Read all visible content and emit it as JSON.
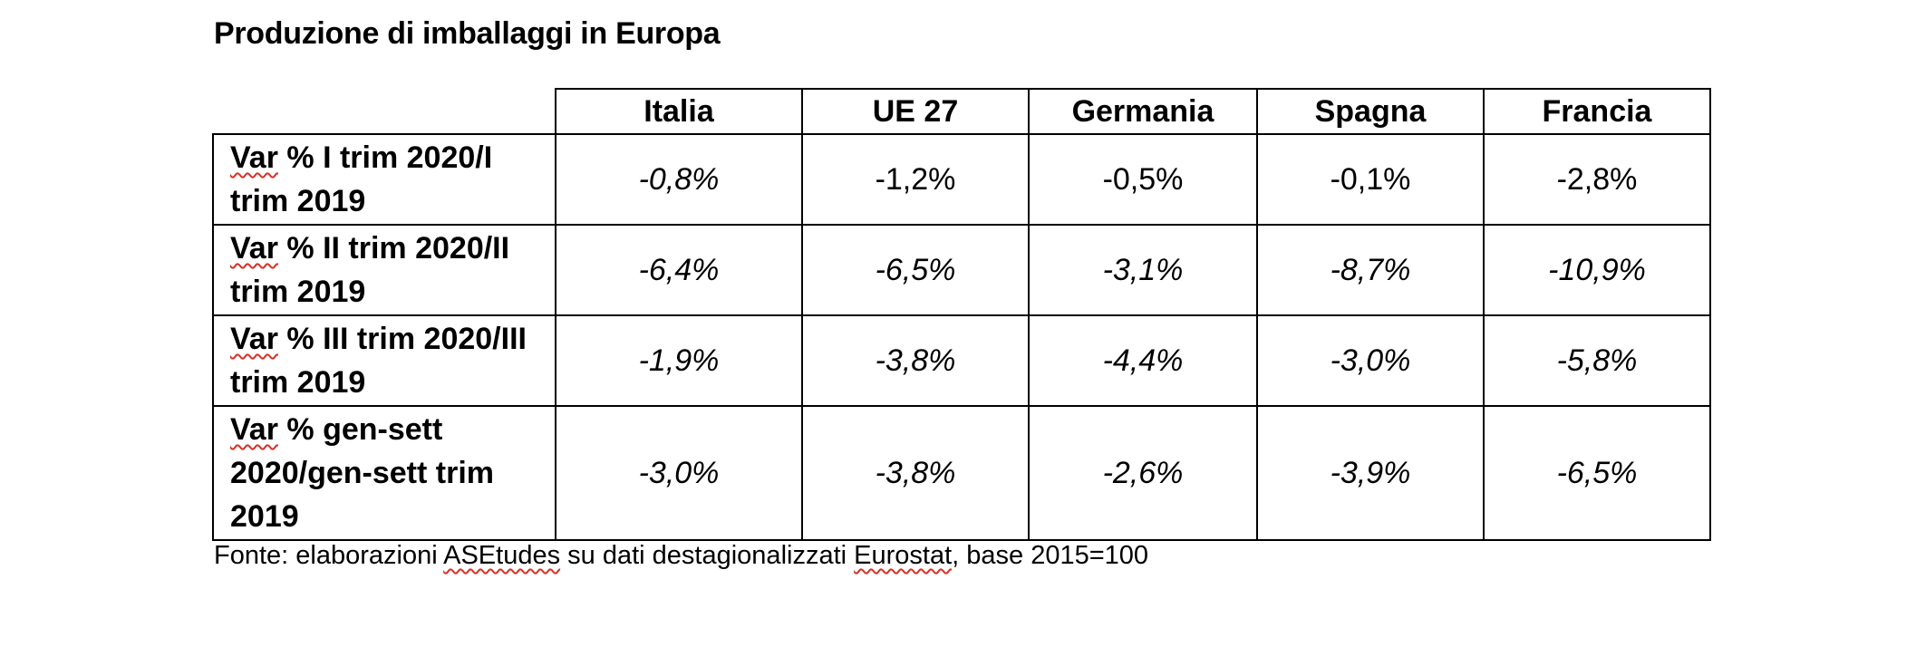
{
  "title": "Produzione di imballaggi in Europa",
  "columns": [
    "Italia",
    "UE 27",
    "Germania",
    "Spagna",
    "Francia"
  ],
  "rows": [
    {
      "label_first_word": "Var",
      "label_rest": " % I trim 2020/I trim 2019",
      "values": [
        "-0,8%",
        "-1,2%",
        "-0,5%",
        "-0,1%",
        "-2,8%"
      ]
    },
    {
      "label_first_word": "Var",
      "label_rest": " % II trim 2020/II trim 2019",
      "values": [
        "-6,4%",
        "-6,5%",
        "-3,1%",
        "-8,7%",
        "-10,9%"
      ]
    },
    {
      "label_first_word": "Var",
      "label_rest": " % III trim 2020/III trim 2019",
      "values": [
        "-1,9%",
        "-3,8%",
        "-4,4%",
        "-3,0%",
        "-5,8%"
      ]
    },
    {
      "label_first_word": "Var",
      "label_rest": " % gen-sett 2020/gen-sett trim 2019",
      "values": [
        "-3,0%",
        "-3,8%",
        "-2,6%",
        "-3,9%",
        "-6,5%"
      ]
    }
  ],
  "source": {
    "part1": "Fonte: elaborazioni ",
    "asetudes": "ASEtudes",
    "part2": " su dati destagionalizzati ",
    "eurostat": "Eurostat",
    "part3": ", base 2015=100"
  }
}
